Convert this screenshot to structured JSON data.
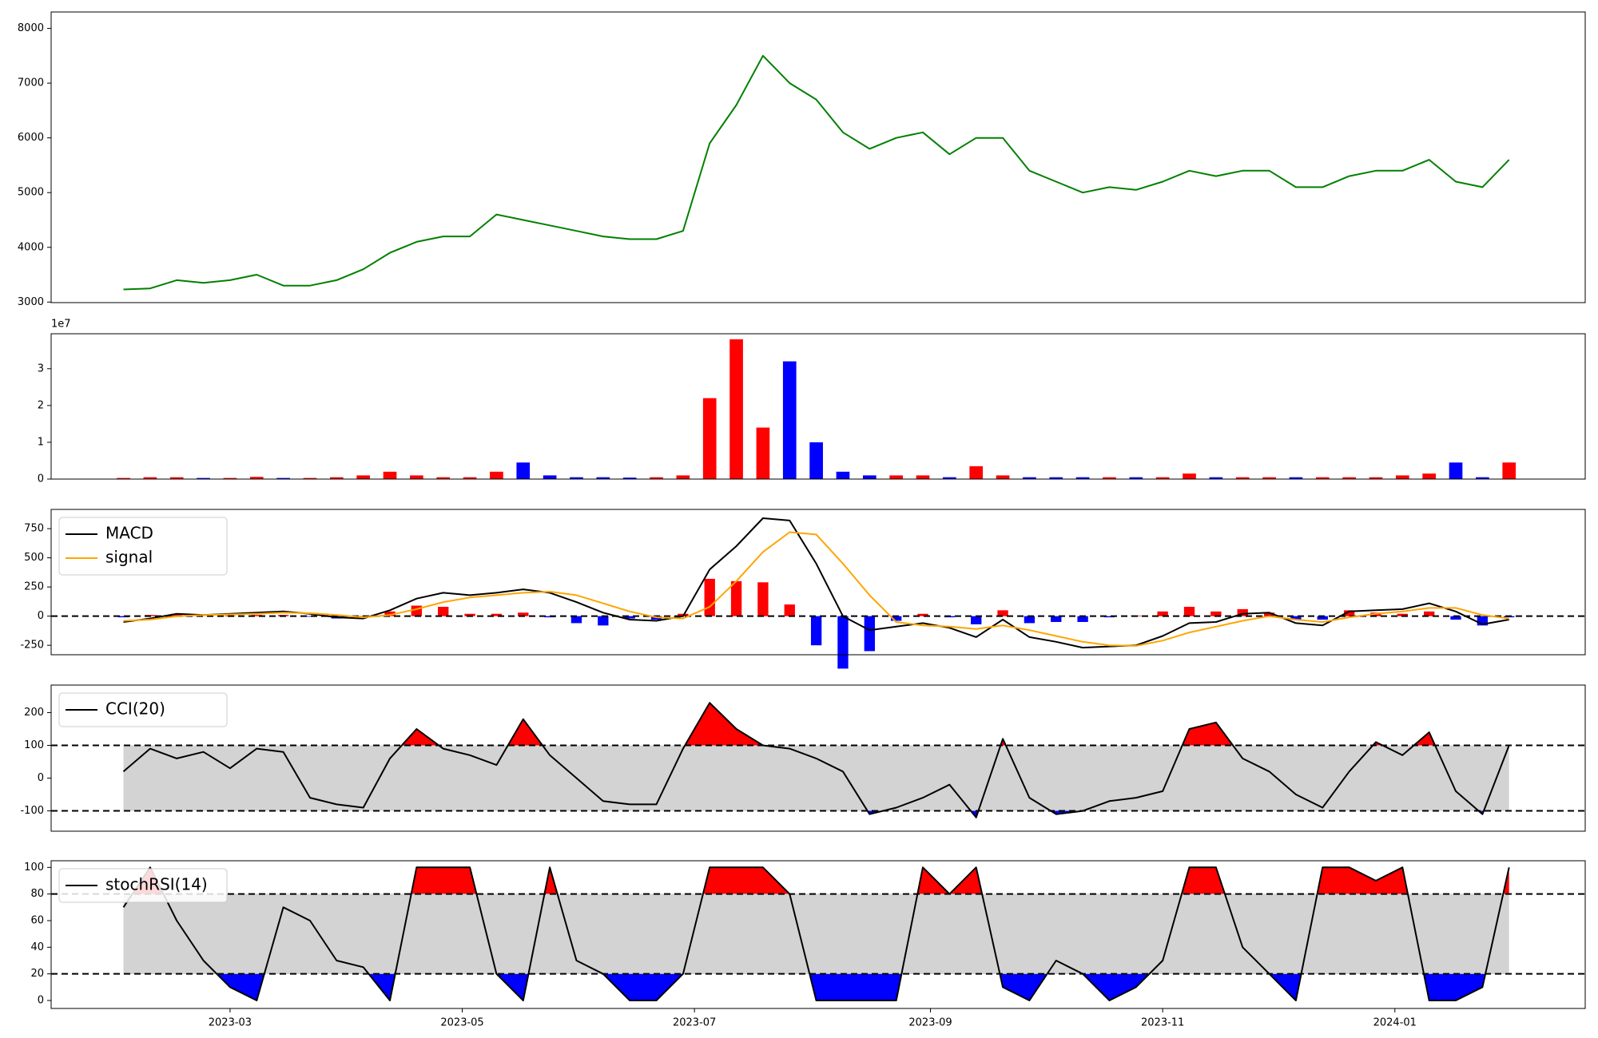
{
  "chart_data": [
    {
      "type": "line",
      "x": [
        31,
        38,
        45,
        52,
        59,
        66,
        73,
        80,
        87,
        94,
        101,
        108,
        115,
        122,
        129,
        136,
        143,
        150,
        157,
        164,
        171,
        178,
        185,
        192,
        199,
        206,
        213,
        220,
        227,
        234,
        241,
        248,
        255,
        262,
        269,
        276,
        283,
        290,
        297,
        304,
        311,
        318,
        325,
        332,
        339,
        346,
        353,
        360,
        367,
        374,
        381,
        388,
        395
      ],
      "xlim": [
        12,
        415
      ],
      "series": [
        {
          "color": "#008000",
          "values": [
            3230,
            3250,
            3400,
            3350,
            3400,
            3500,
            3300,
            3300,
            3400,
            3600,
            3900,
            4100,
            4200,
            4200,
            4600,
            4500,
            4400,
            4300,
            4200,
            4150,
            4150,
            4300,
            5900,
            6600,
            7500,
            7000,
            6700,
            6100,
            5800,
            6000,
            6100,
            5700,
            6000,
            6000,
            5400,
            5200,
            5000,
            5100,
            5050,
            5200,
            5400,
            5300,
            5400,
            5400,
            5100,
            5100,
            5300,
            5400,
            5400,
            5600,
            5200,
            5100,
            5600
          ]
        }
      ],
      "ylim": [
        2990,
        8300
      ],
      "yticks": [
        3000,
        4000,
        5000,
        6000,
        7000,
        8000
      ]
    },
    {
      "type": "bar",
      "x": [
        31,
        38,
        45,
        52,
        59,
        66,
        73,
        80,
        87,
        94,
        101,
        108,
        115,
        122,
        129,
        136,
        143,
        150,
        157,
        164,
        171,
        178,
        185,
        192,
        199,
        206,
        213,
        220,
        227,
        234,
        241,
        248,
        255,
        262,
        269,
        276,
        283,
        290,
        297,
        304,
        311,
        318,
        325,
        332,
        339,
        346,
        353,
        360,
        367,
        374,
        381,
        388,
        395
      ],
      "xlim": [
        12,
        415
      ],
      "values": [
        0.03,
        0.05,
        0.05,
        0.03,
        0.03,
        0.06,
        0.03,
        0.03,
        0.05,
        0.1,
        0.2,
        0.1,
        0.05,
        0.05,
        0.2,
        0.45,
        0.1,
        0.05,
        0.05,
        0.04,
        0.05,
        0.1,
        2.2,
        3.8,
        1.4,
        3.2,
        1.0,
        0.2,
        0.1,
        0.1,
        0.1,
        0.05,
        0.35,
        0.1,
        0.05,
        0.05,
        0.05,
        0.05,
        0.05,
        0.05,
        0.15,
        0.05,
        0.05,
        0.05,
        0.05,
        0.05,
        0.05,
        0.05,
        0.1,
        0.15,
        0.45,
        0.05,
        0.45
      ],
      "up_color": "#ff0000",
      "down_color": "#0000ff",
      "offset_label": "1e7",
      "ylim": [
        0,
        3.95
      ],
      "yticks": [
        0,
        1,
        2,
        3
      ]
    },
    {
      "type": "macd",
      "x": [
        31,
        38,
        45,
        52,
        59,
        66,
        73,
        80,
        87,
        94,
        101,
        108,
        115,
        122,
        129,
        136,
        143,
        150,
        157,
        164,
        171,
        178,
        185,
        192,
        199,
        206,
        213,
        220,
        227,
        234,
        241,
        248,
        255,
        262,
        269,
        276,
        283,
        290,
        297,
        304,
        311,
        318,
        325,
        332,
        339,
        346,
        353,
        360,
        367,
        374,
        381,
        388,
        395
      ],
      "xlim": [
        12,
        415
      ],
      "series": [
        {
          "name": "MACD",
          "color": "#000000",
          "values": [
            -50,
            -20,
            20,
            10,
            20,
            30,
            40,
            20,
            -10,
            -20,
            50,
            150,
            200,
            180,
            200,
            230,
            200,
            120,
            30,
            -30,
            -40,
            0,
            400,
            600,
            840,
            820,
            450,
            0,
            -120,
            -90,
            -60,
            -100,
            -180,
            -30,
            -180,
            -220,
            -270,
            -260,
            -250,
            -170,
            -60,
            -50,
            20,
            30,
            -60,
            -80,
            40,
            50,
            60,
            110,
            40,
            -70,
            -30
          ]
        },
        {
          "name": "signal",
          "color": "#ffa500",
          "values": [
            -40,
            -30,
            0,
            10,
            15,
            20,
            30,
            25,
            10,
            -10,
            10,
            60,
            120,
            160,
            180,
            200,
            210,
            180,
            110,
            40,
            -10,
            -20,
            80,
            300,
            550,
            720,
            700,
            450,
            180,
            -50,
            -80,
            -90,
            -110,
            -80,
            -120,
            -170,
            -220,
            -250,
            -255,
            -210,
            -140,
            -90,
            -40,
            0,
            -30,
            -50,
            -10,
            20,
            40,
            70,
            70,
            10,
            -20
          ]
        }
      ],
      "histogram": {
        "values": [
          -10,
          10,
          20,
          0,
          5,
          10,
          10,
          -5,
          -20,
          -10,
          40,
          90,
          80,
          20,
          20,
          30,
          -10,
          -60,
          -80,
          -20,
          -30,
          20,
          320,
          300,
          290,
          100,
          -250,
          -450,
          -300,
          -40,
          20,
          -10,
          -70,
          50,
          -60,
          -50,
          -50,
          -10,
          5,
          40,
          80,
          40,
          60,
          30,
          -30,
          -30,
          50,
          30,
          20,
          40,
          -30,
          -80,
          -10
        ],
        "up_color": "#ff0000",
        "down_color": "#0000ff"
      },
      "levels": [
        0
      ],
      "legend": "upper left",
      "ylim": [
        -331,
        915
      ],
      "yticks": [
        -250,
        0,
        250,
        500,
        750
      ]
    },
    {
      "type": "oscillator",
      "x": [
        31,
        38,
        45,
        52,
        59,
        66,
        73,
        80,
        87,
        94,
        101,
        108,
        115,
        122,
        129,
        136,
        143,
        150,
        157,
        164,
        171,
        178,
        185,
        192,
        199,
        206,
        213,
        220,
        227,
        234,
        241,
        248,
        255,
        262,
        269,
        276,
        283,
        290,
        297,
        304,
        311,
        318,
        325,
        332,
        339,
        346,
        353,
        360,
        367,
        374,
        381,
        388,
        395
      ],
      "xlim": [
        12,
        415
      ],
      "series": [
        {
          "name": "CCI(20)",
          "color": "#000000",
          "values": [
            20,
            90,
            60,
            80,
            30,
            90,
            80,
            -60,
            -80,
            -90,
            60,
            150,
            90,
            70,
            40,
            180,
            70,
            0,
            -70,
            -80,
            -80,
            90,
            230,
            150,
            100,
            90,
            60,
            20,
            -110,
            -90,
            -60,
            -20,
            -120,
            120,
            -60,
            -110,
            -100,
            -70,
            -60,
            -40,
            150,
            170,
            60,
            20,
            -50,
            -90,
            20,
            110,
            70,
            140,
            -40,
            -110,
            100
          ]
        }
      ],
      "levels": [
        100,
        -100
      ],
      "band_color": "#d3d3d3",
      "above_color": "#ff0000",
      "below_color": "#0000ff",
      "legend": "upper left",
      "ylim": [
        -162,
        284
      ],
      "yticks": [
        -100,
        0,
        100,
        200
      ]
    },
    {
      "type": "oscillator",
      "x": [
        31,
        38,
        45,
        52,
        59,
        66,
        73,
        80,
        87,
        94,
        101,
        108,
        115,
        122,
        129,
        136,
        143,
        150,
        157,
        164,
        171,
        178,
        185,
        192,
        199,
        206,
        213,
        220,
        227,
        234,
        241,
        248,
        255,
        262,
        269,
        276,
        283,
        290,
        297,
        304,
        311,
        318,
        325,
        332,
        339,
        346,
        353,
        360,
        367,
        374,
        381,
        388,
        395
      ],
      "xlim": [
        12,
        415
      ],
      "xticks": [
        {
          "value": 59,
          "label": "2023-03"
        },
        {
          "value": 120,
          "label": "2023-05"
        },
        {
          "value": 181,
          "label": "2023-07"
        },
        {
          "value": 243,
          "label": "2023-09"
        },
        {
          "value": 304,
          "label": "2023-11"
        },
        {
          "value": 365,
          "label": "2024-01"
        }
      ],
      "series": [
        {
          "name": "stochRSI(14)",
          "color": "#000000",
          "values": [
            70,
            100,
            60,
            30,
            10,
            0,
            70,
            60,
            30,
            25,
            0,
            100,
            100,
            100,
            20,
            0,
            100,
            30,
            20,
            0,
            0,
            20,
            100,
            100,
            100,
            80,
            0,
            0,
            0,
            0,
            100,
            80,
            100,
            10,
            0,
            30,
            20,
            0,
            10,
            30,
            100,
            100,
            40,
            20,
            0,
            100,
            100,
            90,
            100,
            0,
            0,
            10,
            100
          ]
        }
      ],
      "levels": [
        80,
        20
      ],
      "band_color": "#d3d3d3",
      "above_color": "#ff0000",
      "below_color": "#0000ff",
      "legend": "upper left",
      "ylim": [
        -6,
        105
      ],
      "yticks": [
        0,
        20,
        40,
        60,
        80,
        100
      ]
    }
  ]
}
